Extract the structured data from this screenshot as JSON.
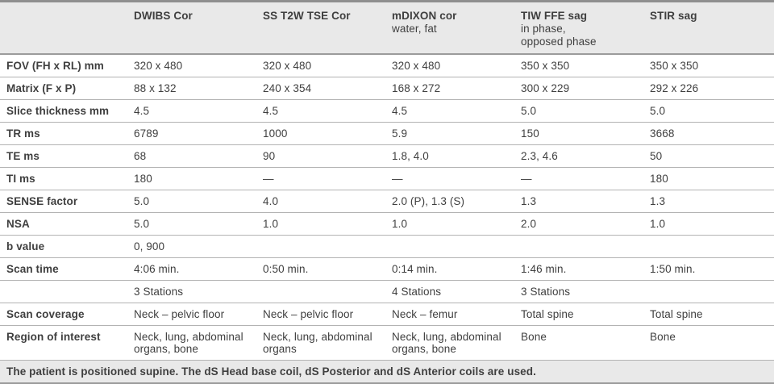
{
  "table": {
    "columns": [
      {
        "title": "DWIBS Cor",
        "subtitle": ""
      },
      {
        "title": "SS T2W TSE Cor",
        "subtitle": ""
      },
      {
        "title": "mDIXON cor",
        "subtitle": "water, fat"
      },
      {
        "title": "TIW FFE sag",
        "subtitle": "in phase,\nopposed phase"
      },
      {
        "title": "STIR sag",
        "subtitle": ""
      }
    ],
    "rows": [
      {
        "label": "FOV (FH x RL) mm",
        "values": [
          "320 x 480",
          "320 x 480",
          "320 x 480",
          "350 x 350",
          "350 x 350"
        ]
      },
      {
        "label": "Matrix (F x P)",
        "values": [
          "88 x 132",
          "240 x 354",
          "168 x 272",
          "300 x 229",
          "292 x 226"
        ]
      },
      {
        "label": "Slice thickness mm",
        "values": [
          "4.5",
          "4.5",
          "4.5",
          "5.0",
          "5.0"
        ]
      },
      {
        "label": "TR ms",
        "values": [
          "6789",
          "1000",
          "5.9",
          "150",
          "3668"
        ]
      },
      {
        "label": "TE ms",
        "values": [
          "68",
          "90",
          "1.8, 4.0",
          "2.3, 4.6",
          "50"
        ]
      },
      {
        "label": "TI ms",
        "values": [
          "180",
          "—",
          "—",
          "—",
          "180"
        ]
      },
      {
        "label": "SENSE factor",
        "values": [
          "5.0",
          "4.0",
          "2.0 (P), 1.3 (S)",
          "1.3",
          "1.3"
        ]
      },
      {
        "label": "NSA",
        "values": [
          "5.0",
          "1.0",
          "1.0",
          "2.0",
          "1.0"
        ]
      },
      {
        "label": "b value",
        "values": [
          "0, 900",
          "",
          "",
          "",
          ""
        ]
      },
      {
        "label": "Scan time",
        "values": [
          "4:06 min.",
          "0:50 min.",
          "0:14 min.",
          "1:46 min.",
          "1:50 min."
        ]
      },
      {
        "label": "",
        "values": [
          "3 Stations",
          "",
          "4 Stations",
          "3 Stations",
          ""
        ]
      },
      {
        "label": "Scan coverage",
        "values": [
          "Neck – pelvic floor",
          "Neck – pelvic floor",
          "Neck – femur",
          "Total spine",
          "Total spine"
        ]
      },
      {
        "label": "Region of interest",
        "values": [
          "Neck, lung, abdominal organs, bone",
          "Neck, lung, abdominal organs",
          "Neck, lung, abdominal organs, bone",
          "Bone",
          "Bone"
        ]
      }
    ],
    "footer_note": "The patient is positioned supine. The dS Head base coil, dS Posterior and dS Anterior coils are used."
  }
}
